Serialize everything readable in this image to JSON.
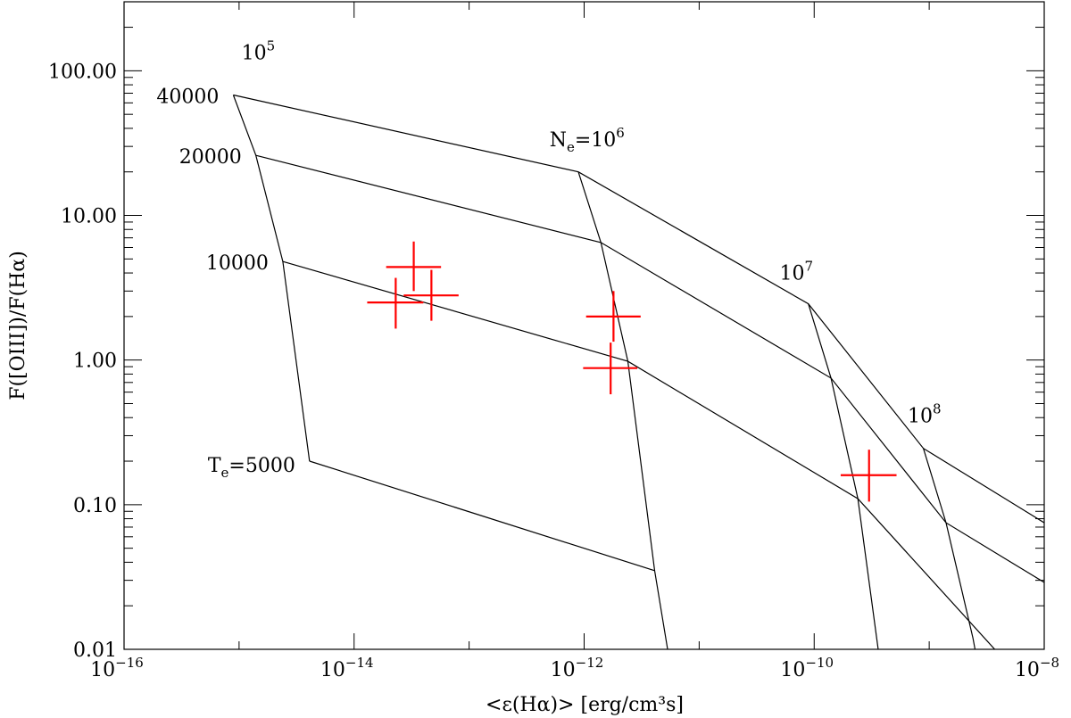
{
  "chart_data": {
    "type": "scatter",
    "title": "",
    "xlabel": "<ε(Hα)> [erg/cm³s]",
    "ylabel": "F([OIII])/F(Hα)",
    "x_scale": "log",
    "y_scale": "log",
    "xlim": [
      1e-16,
      1e-08
    ],
    "ylim": [
      0.01,
      300
    ],
    "grid": false,
    "x_ticks": [
      {
        "value": 1e-16,
        "base": "10",
        "exp": "−16"
      },
      {
        "value": 1e-14,
        "base": "10",
        "exp": "−14"
      },
      {
        "value": 1e-12,
        "base": "10",
        "exp": "−12"
      },
      {
        "value": 1e-10,
        "base": "10",
        "exp": "−10"
      },
      {
        "value": 1e-08,
        "base": "10",
        "exp": "−8"
      }
    ],
    "y_ticks": [
      {
        "value": 100,
        "label": "100.00"
      },
      {
        "value": 10,
        "label": "10.00"
      },
      {
        "value": 1,
        "label": "1.00"
      },
      {
        "value": 0.1,
        "label": "0.10"
      },
      {
        "value": 0.01,
        "label": "0.01"
      }
    ],
    "te_curves": [
      {
        "label": "40000",
        "points": [
          [
            8.9e-16,
            68
          ],
          [
            8.9e-13,
            20
          ],
          [
            8.9e-11,
            2.45
          ],
          [
            8.9e-10,
            0.245
          ],
          [
            1e-08,
            0.075
          ]
        ]
      },
      {
        "label": "20000",
        "points": [
          [
            1.4e-15,
            26
          ],
          [
            1.4e-12,
            6.5
          ],
          [
            1.4e-10,
            0.75
          ],
          [
            1.4e-09,
            0.075
          ],
          [
            1e-08,
            0.029
          ]
        ]
      },
      {
        "label": "10000",
        "points": [
          [
            2.4e-15,
            4.8
          ],
          [
            2.4e-12,
            0.98
          ],
          [
            2.4e-10,
            0.11
          ],
          [
            1e-08,
            0.0042
          ]
        ]
      },
      {
        "label": "5000",
        "prefix": "T",
        "prefix_sub": "e",
        "prefix_eq": "=",
        "points": [
          [
            4.1e-15,
            0.2
          ],
          [
            4.1e-12,
            0.035
          ],
          [
            5.5e-12,
            0.0085
          ]
        ]
      }
    ],
    "ne_curves": [
      {
        "points": [
          [
            8.9e-16,
            68
          ],
          [
            1.4e-15,
            26
          ],
          [
            2.4e-15,
            4.8
          ],
          [
            4.1e-15,
            0.2
          ]
        ]
      },
      {
        "points": [
          [
            8.9e-13,
            20
          ],
          [
            1.4e-12,
            6.5
          ],
          [
            2.4e-12,
            0.98
          ],
          [
            4.1e-12,
            0.035
          ]
        ]
      },
      {
        "points": [
          [
            8.9e-11,
            2.45
          ],
          [
            1.4e-10,
            0.75
          ],
          [
            2.4e-10,
            0.11
          ],
          [
            3.7e-10,
            0.0085
          ]
        ]
      },
      {
        "points": [
          [
            8.9e-10,
            0.245
          ],
          [
            1.4e-09,
            0.075
          ],
          [
            2.4e-09,
            0.012
          ],
          [
            2.6e-09,
            0.0085
          ]
        ]
      }
    ],
    "ne_labels": [
      {
        "text_pre": "N",
        "text_sub": "e",
        "text_mid": "=10",
        "sup": "6",
        "x": 5e-13,
        "y": 30
      },
      {
        "text_pre": "",
        "text_sub": "",
        "text_mid": "10",
        "sup": "5",
        "x": 1.05e-15,
        "y": 120
      },
      {
        "text_pre": "",
        "text_sub": "",
        "text_mid": "10",
        "sup": "7",
        "x": 5e-11,
        "y": 3.6
      },
      {
        "text_pre": "",
        "text_sub": "",
        "text_mid": "10",
        "sup": "8",
        "x": 6.5e-10,
        "y": 0.37
      }
    ],
    "series": [
      {
        "color": "#ff0000",
        "marker": "cross-with-errorbars",
        "points": [
          {
            "x": 2.3e-14,
            "y": 2.5,
            "xlo": 1.3e-14,
            "xhi": 4e-14,
            "ylo": 1.65,
            "yhi": 3.7
          },
          {
            "x": 3.3e-14,
            "y": 4.4,
            "xlo": 1.9e-14,
            "xhi": 5.7e-14,
            "ylo": 3.0,
            "yhi": 6.6
          },
          {
            "x": 4.7e-14,
            "y": 2.8,
            "xlo": 2.7e-14,
            "xhi": 8.1e-14,
            "ylo": 1.87,
            "yhi": 4.2
          },
          {
            "x": 1.8e-12,
            "y": 2.0,
            "xlo": 1.04e-12,
            "xhi": 3.1e-12,
            "ylo": 1.34,
            "yhi": 3.0
          },
          {
            "x": 1.7e-12,
            "y": 0.88,
            "xlo": 9.8e-13,
            "xhi": 2.9e-12,
            "ylo": 0.58,
            "yhi": 1.32
          },
          {
            "x": 3e-10,
            "y": 0.16,
            "xlo": 1.7e-10,
            "xhi": 5.2e-10,
            "ylo": 0.105,
            "yhi": 0.24
          }
        ]
      }
    ]
  }
}
